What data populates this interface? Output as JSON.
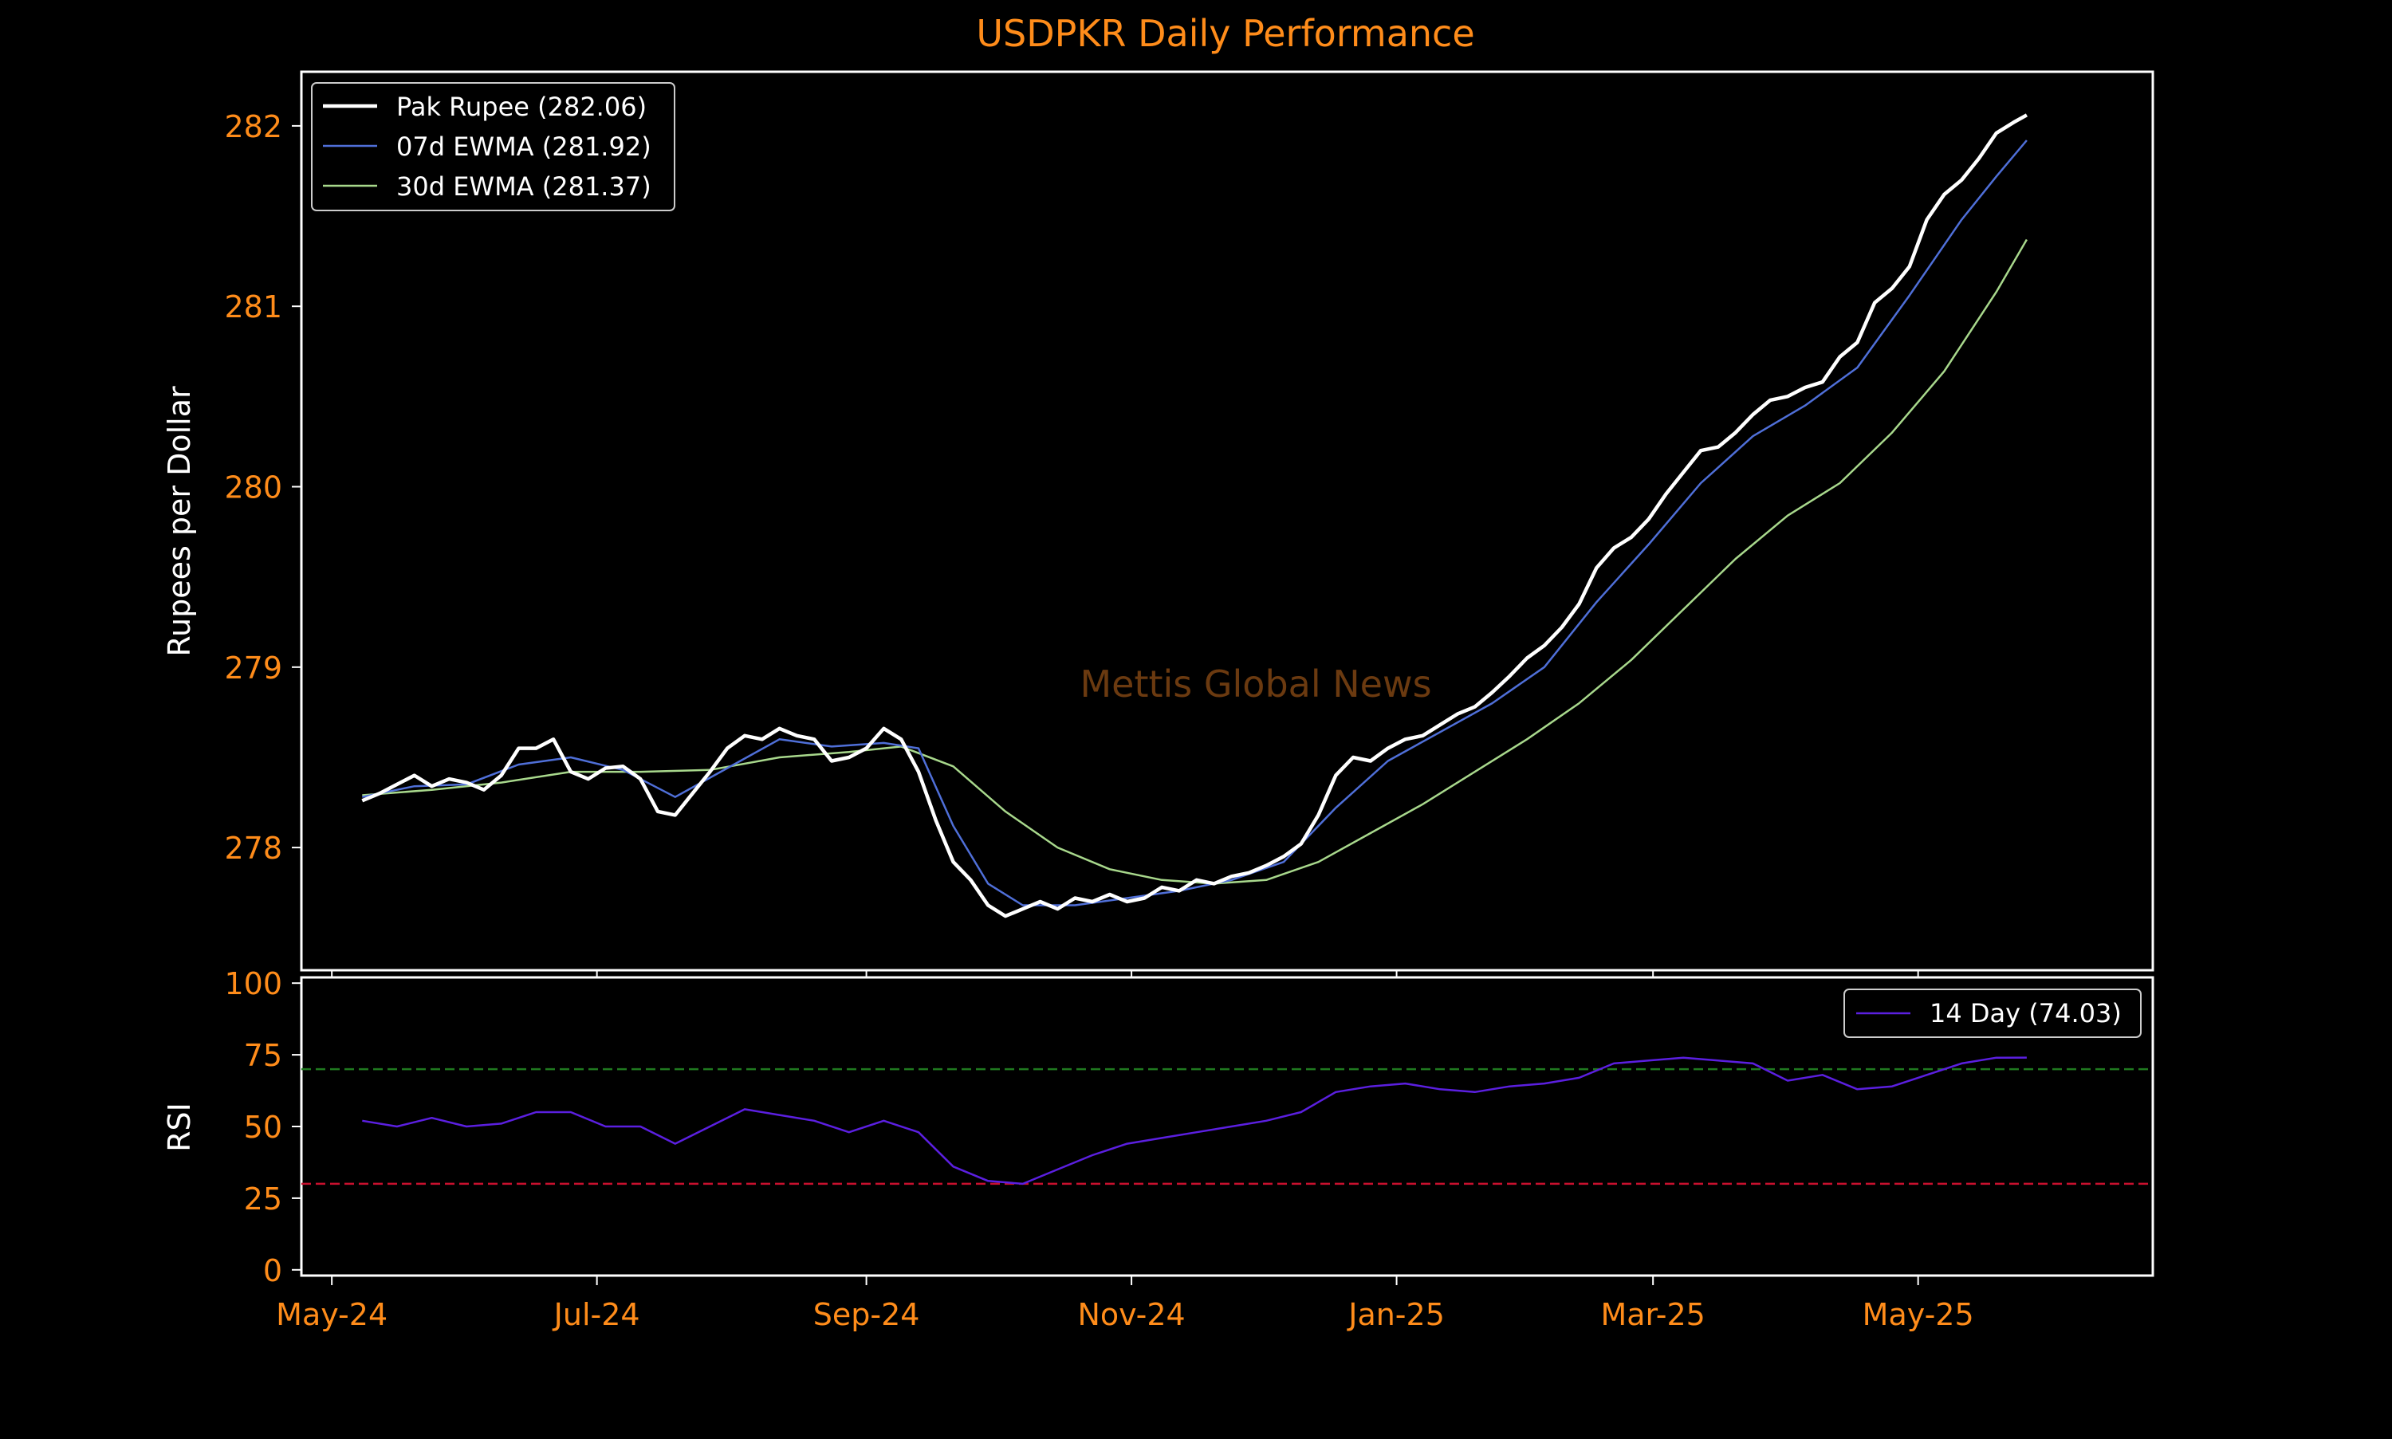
{
  "colors": {
    "background": "#000000",
    "title": "#ff8c1a",
    "tick_label": "#ff8c1a",
    "axis_label": "#ffffff",
    "frame": "#ffffff",
    "price": "#ffffff",
    "ewma7": "#4f6fd8",
    "ewma30": "#a8d88c",
    "rsi": "#5b1fe0",
    "overbought": "#1f7a1f",
    "oversold": "#c8102e",
    "watermark": "#6b3a10"
  },
  "chart_data": [
    {
      "type": "line",
      "title": "USDPKR Daily Performance",
      "watermark": "Mettis Global News",
      "ylabel": "Rupees per Dollar",
      "ylim": [
        277.32,
        282.3
      ],
      "yticks": [
        278,
        279,
        280,
        281,
        282
      ],
      "xlim": [
        "2024-04-24",
        "2025-06-24"
      ],
      "grid": false,
      "legend_position": "top-left",
      "series": [
        {
          "name": "Pak Rupee (282.06)",
          "key": "price",
          "points": [
            [
              "2024-05-08",
              278.26
            ],
            [
              "2024-05-12",
              278.3
            ],
            [
              "2024-05-16",
              278.35
            ],
            [
              "2024-05-20",
              278.4
            ],
            [
              "2024-05-24",
              278.34
            ],
            [
              "2024-05-28",
              278.38
            ],
            [
              "2024-06-01",
              278.36
            ],
            [
              "2024-06-05",
              278.32
            ],
            [
              "2024-06-09",
              278.4
            ],
            [
              "2024-06-13",
              278.55
            ],
            [
              "2024-06-17",
              278.55
            ],
            [
              "2024-06-21",
              278.6
            ],
            [
              "2024-06-25",
              278.42
            ],
            [
              "2024-06-29",
              278.38
            ],
            [
              "2024-07-03",
              278.44
            ],
            [
              "2024-07-07",
              278.45
            ],
            [
              "2024-07-11",
              278.38
            ],
            [
              "2024-07-15",
              278.2
            ],
            [
              "2024-07-19",
              278.18
            ],
            [
              "2024-07-23",
              278.3
            ],
            [
              "2024-07-27",
              278.42
            ],
            [
              "2024-07-31",
              278.55
            ],
            [
              "2024-08-04",
              278.62
            ],
            [
              "2024-08-08",
              278.6
            ],
            [
              "2024-08-12",
              278.66
            ],
            [
              "2024-08-16",
              278.62
            ],
            [
              "2024-08-20",
              278.6
            ],
            [
              "2024-08-24",
              278.48
            ],
            [
              "2024-08-28",
              278.5
            ],
            [
              "2024-09-01",
              278.55
            ],
            [
              "2024-09-05",
              278.66
            ],
            [
              "2024-09-09",
              278.6
            ],
            [
              "2024-09-13",
              278.42
            ],
            [
              "2024-09-17",
              278.15
            ],
            [
              "2024-09-21",
              277.92
            ],
            [
              "2024-09-25",
              277.82
            ],
            [
              "2024-09-29",
              277.68
            ],
            [
              "2024-10-03",
              277.62
            ],
            [
              "2024-10-07",
              277.66
            ],
            [
              "2024-10-11",
              277.7
            ],
            [
              "2024-10-15",
              277.66
            ],
            [
              "2024-10-19",
              277.72
            ],
            [
              "2024-10-23",
              277.7
            ],
            [
              "2024-10-27",
              277.74
            ],
            [
              "2024-10-31",
              277.7
            ],
            [
              "2024-11-04",
              277.72
            ],
            [
              "2024-11-08",
              277.78
            ],
            [
              "2024-11-12",
              277.76
            ],
            [
              "2024-11-16",
              277.82
            ],
            [
              "2024-11-20",
              277.8
            ],
            [
              "2024-11-24",
              277.84
            ],
            [
              "2024-11-28",
              277.86
            ],
            [
              "2024-12-02",
              277.9
            ],
            [
              "2024-12-06",
              277.95
            ],
            [
              "2024-12-10",
              278.02
            ],
            [
              "2024-12-14",
              278.18
            ],
            [
              "2024-12-18",
              278.4
            ],
            [
              "2024-12-22",
              278.5
            ],
            [
              "2024-12-26",
              278.48
            ],
            [
              "2024-12-30",
              278.55
            ],
            [
              "2025-01-03",
              278.6
            ],
            [
              "2025-01-07",
              278.62
            ],
            [
              "2025-01-11",
              278.68
            ],
            [
              "2025-01-15",
              278.74
            ],
            [
              "2025-01-19",
              278.78
            ],
            [
              "2025-01-23",
              278.86
            ],
            [
              "2025-01-27",
              278.95
            ],
            [
              "2025-01-31",
              279.05
            ],
            [
              "2025-02-04",
              279.12
            ],
            [
              "2025-02-08",
              279.22
            ],
            [
              "2025-02-12",
              279.35
            ],
            [
              "2025-02-16",
              279.55
            ],
            [
              "2025-02-20",
              279.66
            ],
            [
              "2025-02-24",
              279.72
            ],
            [
              "2025-02-28",
              279.82
            ],
            [
              "2025-03-04",
              279.96
            ],
            [
              "2025-03-08",
              280.08
            ],
            [
              "2025-03-12",
              280.2
            ],
            [
              "2025-03-16",
              280.22
            ],
            [
              "2025-03-20",
              280.3
            ],
            [
              "2025-03-24",
              280.4
            ],
            [
              "2025-03-28",
              280.48
            ],
            [
              "2025-04-01",
              280.5
            ],
            [
              "2025-04-05",
              280.55
            ],
            [
              "2025-04-09",
              280.58
            ],
            [
              "2025-04-13",
              280.72
            ],
            [
              "2025-04-17",
              280.8
            ],
            [
              "2025-04-21",
              281.02
            ],
            [
              "2025-04-25",
              281.1
            ],
            [
              "2025-04-29",
              281.22
            ],
            [
              "2025-05-03",
              281.48
            ],
            [
              "2025-05-07",
              281.62
            ],
            [
              "2025-05-11",
              281.7
            ],
            [
              "2025-05-15",
              281.82
            ],
            [
              "2025-05-19",
              281.96
            ],
            [
              "2025-05-23",
              282.02
            ],
            [
              "2025-05-26",
              282.06
            ]
          ]
        },
        {
          "name": "07d EWMA (281.92)",
          "key": "ewma7",
          "points": [
            [
              "2024-05-08",
              278.28
            ],
            [
              "2024-05-20",
              278.34
            ],
            [
              "2024-06-01",
              278.35
            ],
            [
              "2024-06-13",
              278.46
            ],
            [
              "2024-06-25",
              278.5
            ],
            [
              "2024-07-07",
              278.43
            ],
            [
              "2024-07-19",
              278.28
            ],
            [
              "2024-07-31",
              278.44
            ],
            [
              "2024-08-12",
              278.6
            ],
            [
              "2024-08-24",
              278.56
            ],
            [
              "2024-09-05",
              278.58
            ],
            [
              "2024-09-13",
              278.55
            ],
            [
              "2024-09-21",
              278.12
            ],
            [
              "2024-09-29",
              277.8
            ],
            [
              "2024-10-07",
              277.68
            ],
            [
              "2024-10-19",
              277.68
            ],
            [
              "2024-10-31",
              277.72
            ],
            [
              "2024-11-12",
              277.76
            ],
            [
              "2024-11-24",
              277.82
            ],
            [
              "2024-12-06",
              277.92
            ],
            [
              "2024-12-18",
              278.22
            ],
            [
              "2024-12-30",
              278.48
            ],
            [
              "2025-01-11",
              278.64
            ],
            [
              "2025-01-23",
              278.8
            ],
            [
              "2025-02-04",
              279.0
            ],
            [
              "2025-02-16",
              279.36
            ],
            [
              "2025-02-28",
              279.68
            ],
            [
              "2025-03-12",
              280.02
            ],
            [
              "2025-03-24",
              280.28
            ],
            [
              "2025-04-05",
              280.45
            ],
            [
              "2025-04-17",
              280.66
            ],
            [
              "2025-04-29",
              281.06
            ],
            [
              "2025-05-11",
              281.48
            ],
            [
              "2025-05-19",
              281.72
            ],
            [
              "2025-05-26",
              281.92
            ]
          ]
        },
        {
          "name": "30d EWMA (281.37)",
          "key": "ewma30",
          "points": [
            [
              "2024-05-08",
              278.29
            ],
            [
              "2024-05-24",
              278.32
            ],
            [
              "2024-06-09",
              278.36
            ],
            [
              "2024-06-25",
              278.42
            ],
            [
              "2024-07-11",
              278.42
            ],
            [
              "2024-07-27",
              278.43
            ],
            [
              "2024-08-12",
              278.5
            ],
            [
              "2024-08-28",
              278.53
            ],
            [
              "2024-09-09",
              278.56
            ],
            [
              "2024-09-21",
              278.45
            ],
            [
              "2024-10-03",
              278.2
            ],
            [
              "2024-10-15",
              278.0
            ],
            [
              "2024-10-27",
              277.88
            ],
            [
              "2024-11-08",
              277.82
            ],
            [
              "2024-11-20",
              277.8
            ],
            [
              "2024-12-02",
              277.82
            ],
            [
              "2024-12-14",
              277.92
            ],
            [
              "2024-12-26",
              278.08
            ],
            [
              "2025-01-07",
              278.24
            ],
            [
              "2025-01-19",
              278.42
            ],
            [
              "2025-01-31",
              278.6
            ],
            [
              "2025-02-12",
              278.8
            ],
            [
              "2025-02-24",
              279.04
            ],
            [
              "2025-03-08",
              279.32
            ],
            [
              "2025-03-20",
              279.6
            ],
            [
              "2025-04-01",
              279.84
            ],
            [
              "2025-04-13",
              280.02
            ],
            [
              "2025-04-25",
              280.3
            ],
            [
              "2025-05-07",
              280.64
            ],
            [
              "2025-05-19",
              281.08
            ],
            [
              "2025-05-26",
              281.37
            ]
          ]
        }
      ]
    },
    {
      "type": "line",
      "ylabel": "RSI",
      "ylim": [
        -2,
        102
      ],
      "yticks": [
        0,
        25,
        50,
        75,
        100
      ],
      "xlim": [
        "2024-04-24",
        "2025-06-24"
      ],
      "xticks": [
        "May-24",
        "Jul-24",
        "Sep-24",
        "Nov-24",
        "Jan-25",
        "Mar-25",
        "May-25"
      ],
      "xtick_dates": [
        "2024-05-01",
        "2024-07-01",
        "2024-09-01",
        "2024-11-01",
        "2025-01-01",
        "2025-03-01",
        "2025-05-01"
      ],
      "reference_lines": [
        70,
        30
      ],
      "legend_position": "top-right",
      "series": [
        {
          "name": "14 Day (74.03)",
          "key": "rsi",
          "points": [
            [
              "2024-05-08",
              52
            ],
            [
              "2024-05-16",
              50
            ],
            [
              "2024-05-24",
              53
            ],
            [
              "2024-06-01",
              50
            ],
            [
              "2024-06-09",
              51
            ],
            [
              "2024-06-17",
              55
            ],
            [
              "2024-06-25",
              55
            ],
            [
              "2024-07-03",
              50
            ],
            [
              "2024-07-11",
              50
            ],
            [
              "2024-07-19",
              44
            ],
            [
              "2024-07-27",
              50
            ],
            [
              "2024-08-04",
              56
            ],
            [
              "2024-08-12",
              54
            ],
            [
              "2024-08-20",
              52
            ],
            [
              "2024-08-28",
              48
            ],
            [
              "2024-09-05",
              52
            ],
            [
              "2024-09-13",
              48
            ],
            [
              "2024-09-21",
              36
            ],
            [
              "2024-09-29",
              31
            ],
            [
              "2024-10-07",
              30
            ],
            [
              "2024-10-15",
              35
            ],
            [
              "2024-10-23",
              40
            ],
            [
              "2024-10-31",
              44
            ],
            [
              "2024-11-08",
              46
            ],
            [
              "2024-11-16",
              48
            ],
            [
              "2024-11-24",
              50
            ],
            [
              "2024-12-02",
              52
            ],
            [
              "2024-12-10",
              55
            ],
            [
              "2024-12-18",
              62
            ],
            [
              "2024-12-26",
              64
            ],
            [
              "2025-01-03",
              65
            ],
            [
              "2025-01-11",
              63
            ],
            [
              "2025-01-19",
              62
            ],
            [
              "2025-01-27",
              64
            ],
            [
              "2025-02-04",
              65
            ],
            [
              "2025-02-12",
              67
            ],
            [
              "2025-02-20",
              72
            ],
            [
              "2025-02-28",
              73
            ],
            [
              "2025-03-08",
              74
            ],
            [
              "2025-03-16",
              73
            ],
            [
              "2025-03-24",
              72
            ],
            [
              "2025-04-01",
              66
            ],
            [
              "2025-04-09",
              68
            ],
            [
              "2025-04-17",
              63
            ],
            [
              "2025-04-25",
              64
            ],
            [
              "2025-05-03",
              68
            ],
            [
              "2025-05-11",
              72
            ],
            [
              "2025-05-19",
              74
            ],
            [
              "2025-05-26",
              74.03
            ]
          ]
        }
      ]
    }
  ]
}
